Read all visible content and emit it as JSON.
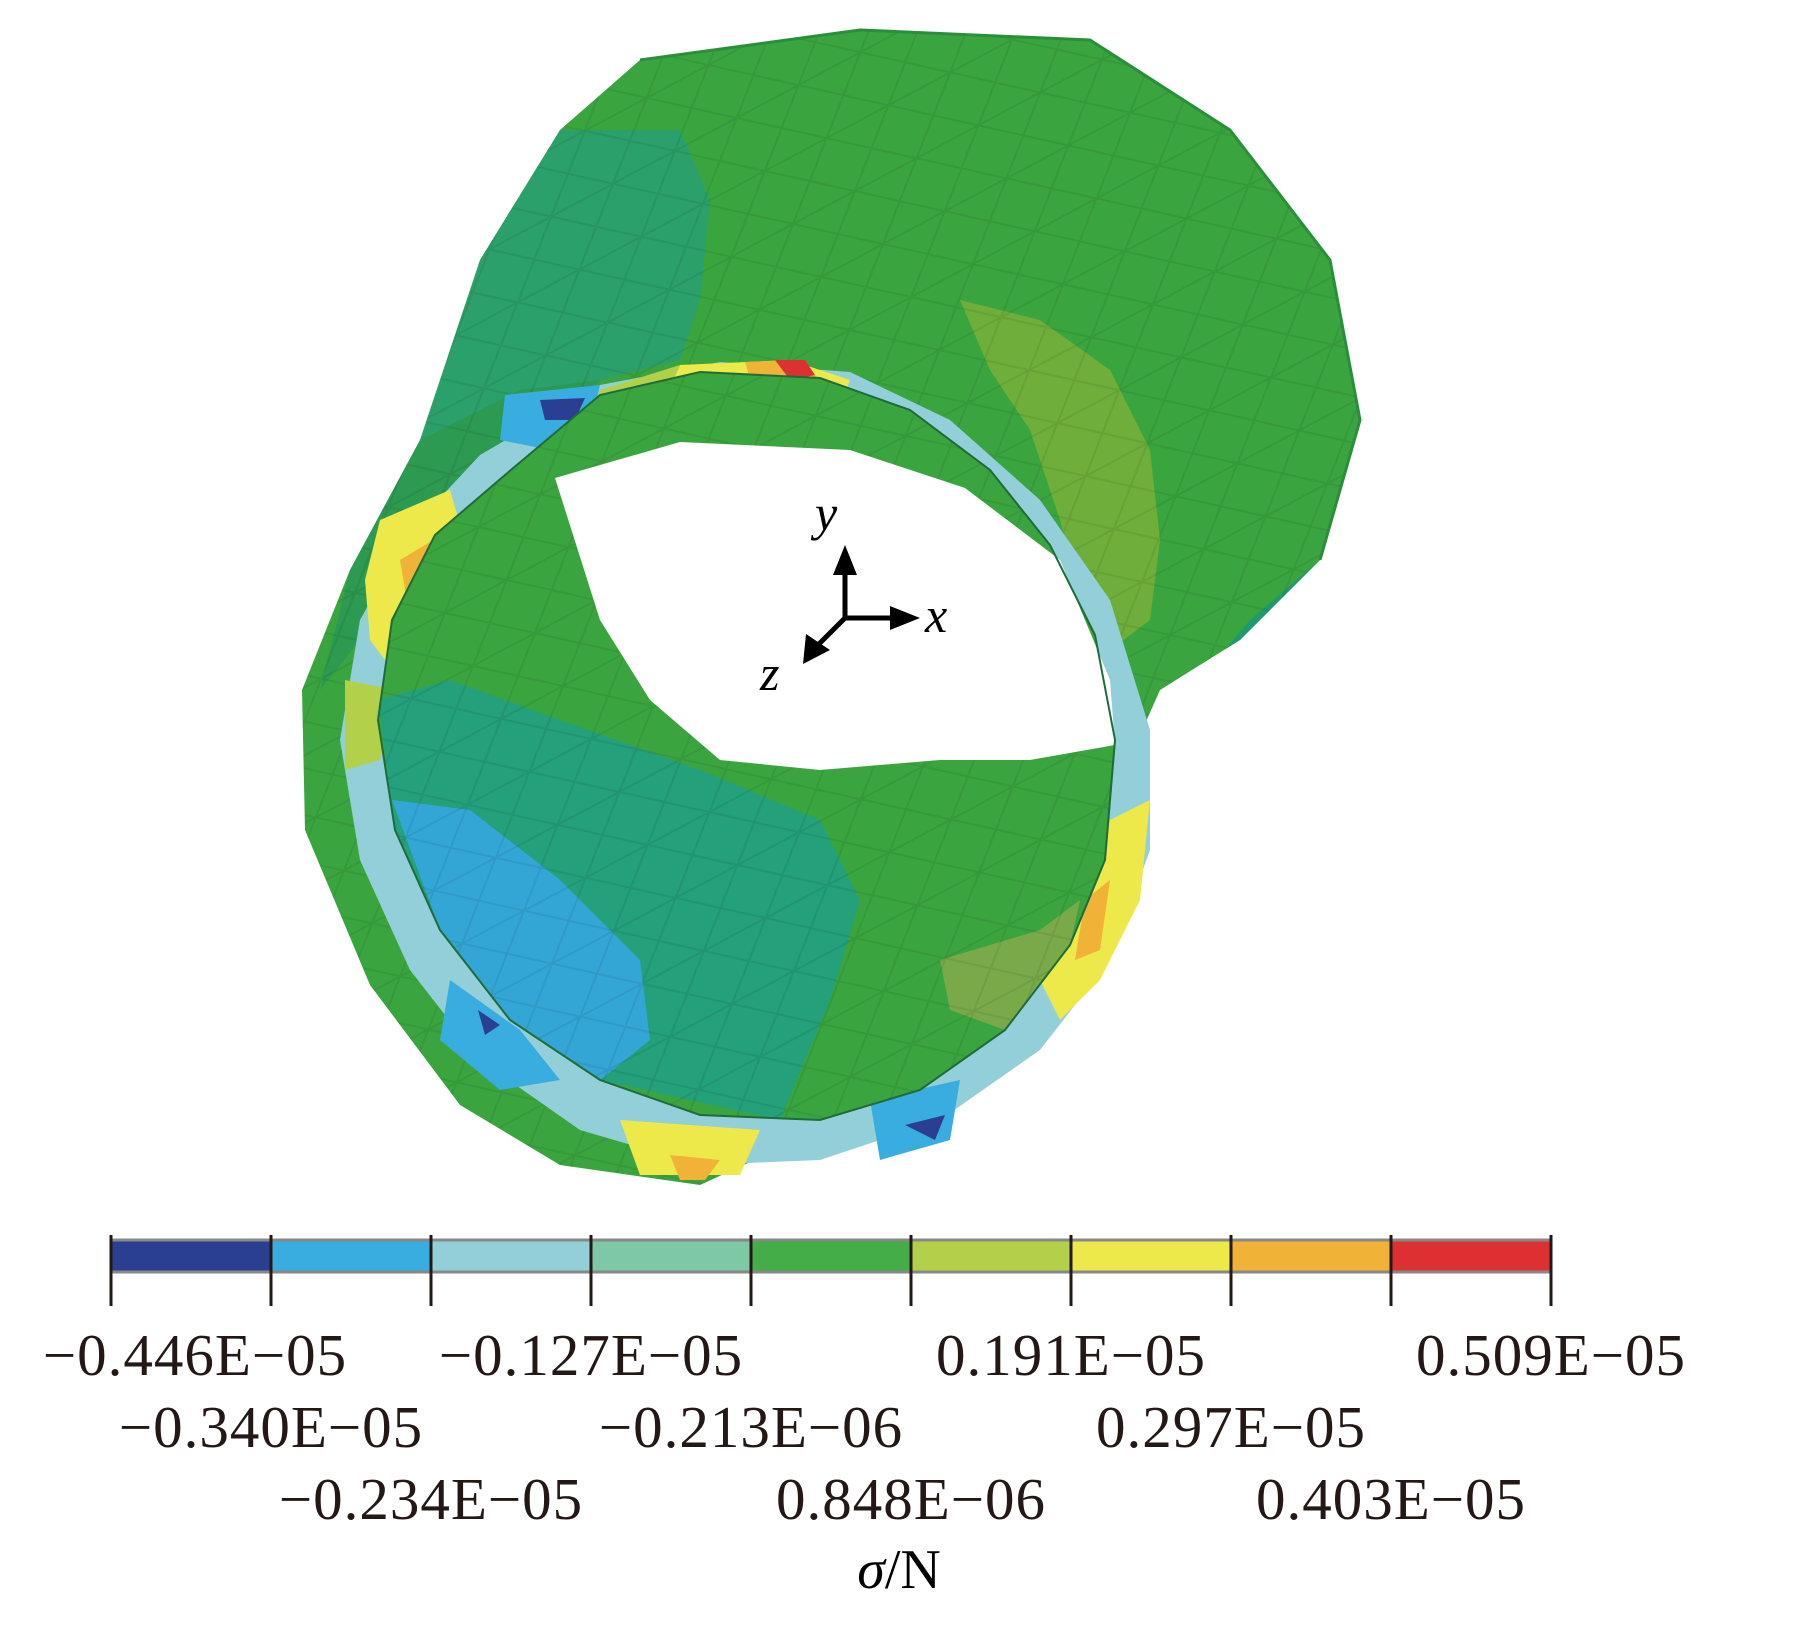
{
  "colorbar": {
    "colors": [
      "#2b3f92",
      "#39ade0",
      "#93cfd8",
      "#7ec8a5",
      "#44ad47",
      "#b3d04a",
      "#eee94a",
      "#f1b238",
      "#dd3032"
    ],
    "tick_labels": [
      "−0.446E−05",
      "−0.340E−05",
      "−0.234E−05",
      "−0.127E−05",
      "−0.213E−06",
      "0.848E−06",
      "0.191E−05",
      "0.297E−05",
      "0.403E−05",
      "0.509E−05"
    ],
    "unit_symbol": "σ",
    "unit_suffix": "/N"
  },
  "axes": {
    "x": "x",
    "y": "y",
    "z": "z"
  },
  "palette": {
    "shell_green": "#3aa53f",
    "shell_dark": "#2c9342",
    "shell_teal": "#24a07a",
    "shell_blue": "#34a6d6",
    "background": "#ffffff"
  }
}
